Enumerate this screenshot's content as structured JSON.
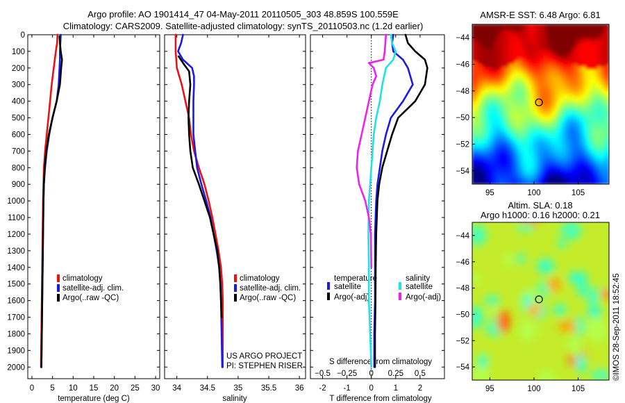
{
  "titles": {
    "line1": "Argo profile: AO 1901414_47 04-May-2011 20110505_303 48.859S 100.559E",
    "line2": "Climatology: CARS2009. Satellite-adjusted climatology: synTS_20110503.nc (1.2d earlier)"
  },
  "colors": {
    "climatology": "#ee1111",
    "satellite": "#1a1ae8",
    "argo": "#000000",
    "s_satellite": "#22e0e8",
    "s_argo": "#ee22ee"
  },
  "annotations": {
    "project_line1": "US ARGO PROJECT",
    "project_line2": "PI: STEPHEN RISER",
    "credit": "©IMOS 28-Sep-2011 18:52:45"
  },
  "chart_data": [
    {
      "id": "temperature",
      "type": "line",
      "xlabel": "temperature (deg C)",
      "ylabel": "",
      "xlim": [
        -1,
        31
      ],
      "ylim": [
        2070,
        0
      ],
      "xticks": [
        0,
        5,
        10,
        15,
        20,
        25,
        30
      ],
      "yticks": [
        0,
        100,
        200,
        300,
        400,
        500,
        600,
        700,
        800,
        900,
        1000,
        1100,
        1200,
        1300,
        1400,
        1500,
        1600,
        1700,
        1800,
        1900,
        2000
      ],
      "legend": {
        "position": "center-bottom",
        "entries": [
          "climatology",
          "satellite-adj. clim.",
          "Argo(..raw -QC)"
        ]
      },
      "series": [
        {
          "name": "climatology",
          "color_key": "climatology",
          "points": [
            [
              6.2,
              0
            ],
            [
              6.1,
              50
            ],
            [
              5.8,
              100
            ],
            [
              5.3,
              200
            ],
            [
              4.8,
              300
            ],
            [
              4.4,
              400
            ],
            [
              4.0,
              500
            ],
            [
              3.6,
              600
            ],
            [
              3.2,
              700
            ],
            [
              2.9,
              800
            ],
            [
              2.8,
              900
            ],
            [
              2.7,
              1000
            ],
            [
              2.6,
              1200
            ],
            [
              2.5,
              1400
            ],
            [
              2.4,
              1600
            ],
            [
              2.3,
              1800
            ],
            [
              2.2,
              2000
            ]
          ]
        },
        {
          "name": "satellite-adj. clim.",
          "color_key": "satellite",
          "points": [
            [
              7.0,
              0
            ],
            [
              6.9,
              50
            ],
            [
              6.8,
              100
            ],
            [
              6.8,
              150
            ],
            [
              6.7,
              200
            ],
            [
              6.5,
              300
            ],
            [
              6.0,
              400
            ],
            [
              5.0,
              500
            ],
            [
              4.2,
              600
            ],
            [
              3.6,
              700
            ],
            [
              3.2,
              800
            ],
            [
              2.9,
              900
            ],
            [
              2.8,
              1000
            ],
            [
              2.7,
              1200
            ],
            [
              2.6,
              1400
            ],
            [
              2.5,
              1600
            ],
            [
              2.4,
              1800
            ],
            [
              2.3,
              2000
            ]
          ]
        },
        {
          "name": "Argo(..raw -QC)",
          "color_key": "argo",
          "points": [
            [
              6.7,
              10
            ],
            [
              6.8,
              50
            ],
            [
              7.0,
              100
            ],
            [
              7.3,
              150
            ],
            [
              7.1,
              200
            ],
            [
              6.8,
              300
            ],
            [
              6.0,
              400
            ],
            [
              5.0,
              500
            ],
            [
              4.1,
              600
            ],
            [
              3.5,
              700
            ],
            [
              3.1,
              800
            ],
            [
              2.9,
              900
            ],
            [
              2.8,
              1000
            ],
            [
              2.7,
              1200
            ],
            [
              2.6,
              1400
            ],
            [
              2.5,
              1600
            ],
            [
              2.4,
              1800
            ],
            [
              2.3,
              2000
            ]
          ]
        }
      ]
    },
    {
      "id": "salinity",
      "type": "line",
      "xlabel": "salinity",
      "ylabel": "",
      "xlim": [
        33.8,
        36.1
      ],
      "ylim": [
        2070,
        0
      ],
      "xticks": [
        34,
        34.5,
        35,
        35.5,
        36
      ],
      "xtick_labels": [
        "34",
        "34.5",
        "35",
        "35.5",
        "36"
      ],
      "legend": {
        "position": "center-bottom",
        "entries": [
          "climatology",
          "satellite-adj. clim.",
          "Argo(..raw -QC)"
        ]
      },
      "series": [
        {
          "name": "climatology",
          "color_key": "climatology",
          "points": [
            [
              33.98,
              0
            ],
            [
              33.98,
              100
            ],
            [
              34.0,
              200
            ],
            [
              34.08,
              300
            ],
            [
              34.14,
              400
            ],
            [
              34.2,
              500
            ],
            [
              34.23,
              600
            ],
            [
              34.28,
              700
            ],
            [
              34.36,
              800
            ],
            [
              34.45,
              900
            ],
            [
              34.52,
              1000
            ],
            [
              34.58,
              1100
            ],
            [
              34.63,
              1200
            ],
            [
              34.68,
              1300
            ],
            [
              34.72,
              1400
            ],
            [
              34.74,
              1500
            ],
            [
              34.75,
              1600
            ],
            [
              34.75,
              1800
            ],
            [
              34.75,
              2000
            ]
          ]
        },
        {
          "name": "satellite-adj. clim.",
          "color_key": "satellite",
          "points": [
            [
              34.1,
              0
            ],
            [
              34.07,
              50
            ],
            [
              34.02,
              100
            ],
            [
              34.1,
              150
            ],
            [
              34.25,
              200
            ],
            [
              34.28,
              250
            ],
            [
              34.28,
              300
            ],
            [
              34.27,
              400
            ],
            [
              34.27,
              500
            ],
            [
              34.27,
              600
            ],
            [
              34.3,
              700
            ],
            [
              34.33,
              800
            ],
            [
              34.4,
              900
            ],
            [
              34.48,
              1000
            ],
            [
              34.55,
              1100
            ],
            [
              34.6,
              1200
            ],
            [
              34.65,
              1300
            ],
            [
              34.69,
              1400
            ],
            [
              34.71,
              1500
            ],
            [
              34.72,
              1600
            ],
            [
              34.73,
              1800
            ],
            [
              34.74,
              2000
            ]
          ]
        },
        {
          "name": "Argo(..raw -QC)",
          "color_key": "argo",
          "points": [
            [
              34.03,
              130
            ],
            [
              34.12,
              180
            ],
            [
              34.2,
              220
            ],
            [
              34.22,
              300
            ],
            [
              34.2,
              400
            ],
            [
              34.19,
              500
            ],
            [
              34.2,
              600
            ],
            [
              34.22,
              700
            ],
            [
              34.26,
              800
            ],
            [
              34.36,
              900
            ],
            [
              34.45,
              1000
            ],
            [
              34.54,
              1100
            ],
            [
              34.6,
              1200
            ],
            [
              34.66,
              1300
            ],
            [
              34.69,
              1400
            ],
            [
              34.71,
              1500
            ],
            [
              34.72,
              1600
            ],
            [
              34.73,
              1700
            ]
          ]
        }
      ]
    },
    {
      "id": "difference",
      "type": "line",
      "xlabel": "T difference from climatology",
      "top_label": "S difference from climatology",
      "xlim": [
        -2.5,
        3.0
      ],
      "ylim": [
        2070,
        0
      ],
      "xticks": [
        -2,
        -1,
        0,
        1,
        2
      ],
      "secondary_xticks": [
        -0.5,
        -0.25,
        0,
        0.25,
        0.5
      ],
      "secondary_xtick_labels": [
        "−0.5",
        "−0.25",
        "0",
        "0.25",
        "0.5"
      ],
      "zero_line": 0,
      "legend_temperature": {
        "title": "temperature",
        "entries": [
          "satellite",
          "Argo(-adj)"
        ]
      },
      "legend_salinity": {
        "title": "salinity",
        "entries": [
          "satellite",
          "Argo(-adj)"
        ]
      },
      "series": [
        {
          "name": "T satellite",
          "color_key": "satellite",
          "points": [
            [
              0.9,
              0
            ],
            [
              0.85,
              50
            ],
            [
              0.9,
              100
            ],
            [
              1.3,
              150
            ],
            [
              1.5,
              200
            ],
            [
              1.7,
              300
            ],
            [
              1.3,
              400
            ],
            [
              0.8,
              500
            ],
            [
              0.6,
              600
            ],
            [
              0.45,
              700
            ],
            [
              0.35,
              800
            ],
            [
              0.25,
              900
            ],
            [
              0.2,
              1000
            ],
            [
              0.15,
              1200
            ],
            [
              0.15,
              1400
            ],
            [
              0.15,
              1600
            ],
            [
              0.12,
              1800
            ],
            [
              0.12,
              2000
            ]
          ]
        },
        {
          "name": "T Argo(-adj)",
          "color_key": "argo",
          "points": [
            [
              1.4,
              0
            ],
            [
              1.5,
              50
            ],
            [
              1.8,
              100
            ],
            [
              2.2,
              150
            ],
            [
              2.3,
              200
            ],
            [
              2.2,
              300
            ],
            [
              1.8,
              400
            ],
            [
              1.1,
              500
            ],
            [
              0.85,
              600
            ],
            [
              0.65,
              700
            ],
            [
              0.45,
              800
            ],
            [
              0.32,
              900
            ],
            [
              0.25,
              1000
            ],
            [
              0.2,
              1200
            ],
            [
              0.18,
              1400
            ],
            [
              0.17,
              1600
            ],
            [
              0.15,
              1800
            ],
            [
              0.15,
              2000
            ]
          ]
        },
        {
          "name": "S satellite",
          "color_key": "s_satellite",
          "points": [
            [
              0.8,
              0
            ],
            [
              0.85,
              50
            ],
            [
              1.0,
              100
            ],
            [
              0.9,
              150
            ],
            [
              0.6,
              200
            ],
            [
              0.45,
              300
            ],
            [
              0.35,
              400
            ],
            [
              0.2,
              500
            ],
            [
              0.1,
              600
            ],
            [
              0.05,
              700
            ],
            [
              0.0,
              800
            ],
            [
              -0.05,
              900
            ],
            [
              -0.1,
              1000
            ],
            [
              -0.12,
              1200
            ],
            [
              -0.1,
              1400
            ],
            [
              -0.1,
              1600
            ],
            [
              -0.05,
              1800
            ],
            [
              0.0,
              2000
            ]
          ]
        },
        {
          "name": "S Argo(-adj)",
          "color_key": "s_argo",
          "points": [
            [
              0.6,
              0
            ],
            [
              0.55,
              100
            ],
            [
              0.5,
              150
            ],
            [
              -0.1,
              170
            ],
            [
              0.1,
              200
            ],
            [
              0.2,
              250
            ],
            [
              0.05,
              300
            ],
            [
              -0.1,
              400
            ],
            [
              -0.25,
              500
            ],
            [
              -0.4,
              600
            ],
            [
              -0.55,
              700
            ],
            [
              -0.6,
              800
            ],
            [
              -0.5,
              900
            ],
            [
              -0.25,
              1000
            ],
            [
              -0.1,
              1100
            ],
            [
              -0.02,
              1200
            ],
            [
              0.0,
              1400
            ]
          ]
        }
      ]
    },
    {
      "id": "sst_map",
      "type": "heatmap",
      "title": "AMSR-E SST: 6.48 Argo: 6.81",
      "xlim": [
        93,
        108.5
      ],
      "ylim": [
        -55,
        -43
      ],
      "xticks": [
        95,
        100,
        105
      ],
      "yticks": [
        -44,
        -46,
        -48,
        -50,
        -52,
        -54
      ],
      "argo_marker": [
        100.56,
        -48.86
      ]
    },
    {
      "id": "sla_map",
      "type": "heatmap",
      "title_line1": "Altim. SLA: 0.18",
      "title_line2": "Argo h1000: 0.16 h2000: 0.21",
      "xlim": [
        93,
        108.5
      ],
      "ylim": [
        -55,
        -43
      ],
      "xticks": [
        95,
        100,
        105
      ],
      "yticks": [
        -44,
        -46,
        -48,
        -50,
        -52,
        -54
      ],
      "argo_marker": [
        100.56,
        -48.86
      ]
    }
  ]
}
